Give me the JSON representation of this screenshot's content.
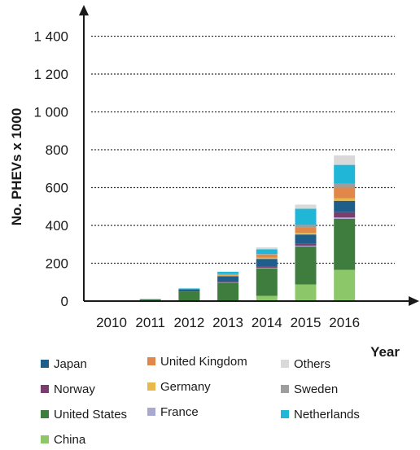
{
  "chart_data": {
    "type": "bar",
    "stacked": true,
    "title": "",
    "xlabel": "Year",
    "ylabel": "No. PHEVs x 1000",
    "ylim": [
      0,
      1500
    ],
    "yticks": [
      0,
      200,
      400,
      600,
      800,
      1000,
      1200,
      1400
    ],
    "ytick_labels": [
      "0",
      "200",
      "400",
      "600",
      "800",
      "1 000",
      "1 200",
      "1 400"
    ],
    "grid": "horizontal dotted",
    "legend_position": "bottom",
    "categories": [
      "2010",
      "2011",
      "2012",
      "2013",
      "2014",
      "2015",
      "2016"
    ],
    "series": [
      {
        "name": "China",
        "color": "#8cc86a",
        "values": [
          0,
          0,
          1,
          3,
          28,
          88,
          165
        ]
      },
      {
        "name": "United States",
        "color": "#3f7d3f",
        "values": [
          0,
          8,
          50,
          95,
          145,
          200,
          270
        ]
      },
      {
        "name": "France",
        "color": "#a9a9cf",
        "values": [
          0,
          0,
          0,
          1,
          3,
          5,
          7
        ]
      },
      {
        "name": "Norway",
        "color": "#7a3e6e",
        "values": [
          0,
          0,
          0,
          3,
          5,
          9,
          28
        ]
      },
      {
        "name": "Japan",
        "color": "#1f5e8a",
        "values": [
          0,
          2,
          12,
          30,
          42,
          50,
          60
        ]
      },
      {
        "name": "Germany",
        "color": "#e8b84a",
        "values": [
          0,
          0,
          0,
          4,
          7,
          9,
          14
        ]
      },
      {
        "name": "United Kingdom",
        "color": "#e0874a",
        "values": [
          0,
          0,
          1,
          5,
          16,
          30,
          56
        ]
      },
      {
        "name": "Sweden",
        "color": "#9e9e9e",
        "values": [
          0,
          0,
          0,
          2,
          3,
          12,
          20
        ]
      },
      {
        "name": "Netherlands",
        "color": "#1fb6d8",
        "values": [
          0,
          0,
          3,
          12,
          25,
          85,
          100
        ]
      },
      {
        "name": "Others",
        "color": "#d9d9d9",
        "values": [
          0,
          0,
          0,
          0,
          10,
          22,
          50
        ]
      }
    ],
    "legend_layout": [
      [
        "Japan",
        "United Kingdom",
        "Others"
      ],
      [
        "Norway",
        "Germany",
        "Sweden"
      ],
      [
        "United States",
        "France",
        "Netherlands"
      ],
      [
        "China"
      ]
    ]
  }
}
